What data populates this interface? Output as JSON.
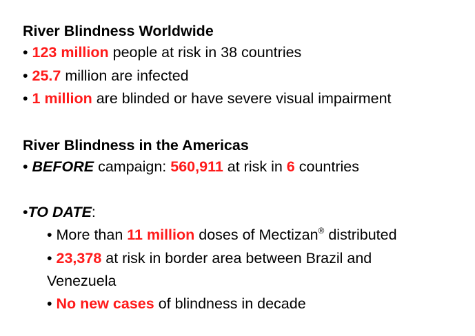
{
  "worldwide": {
    "heading": "River Blindness Worldwide",
    "bullet_1": {
      "bullet": "•",
      "highlight": "123 million",
      "rest": " people at risk in 38 countries"
    },
    "bullet_2": {
      "bullet": "•",
      "highlight": "25.7",
      "rest": " million are infected"
    },
    "bullet_3": {
      "bullet": "•",
      "highlight": "1 million",
      "rest": " are blinded or have severe visual impairment"
    }
  },
  "americas": {
    "heading": "River Blindness in the Americas",
    "before": {
      "bullet": "•",
      "label": "BEFORE",
      "text_1": " campaign: ",
      "at_risk": "560,911",
      "text_2": " at risk in ",
      "countries": "6",
      "text_3": " countries"
    }
  },
  "to_date": {
    "bullet": "•",
    "label": "TO DATE",
    "colon": ":",
    "item_1": {
      "bullet": "•",
      "prefix": " More than ",
      "highlight": "11 million",
      "rest": " doses of Mectizan",
      "registered": "®",
      "rest_2": " distributed"
    },
    "item_2": {
      "bullet": "•",
      "highlight": "23,378",
      "rest": " at risk in border area between Brazil and",
      "continuation": "Venezuela"
    },
    "item_3": {
      "bullet": "•",
      "highlight": "No new cases",
      "rest": " of blindness in decade"
    }
  }
}
